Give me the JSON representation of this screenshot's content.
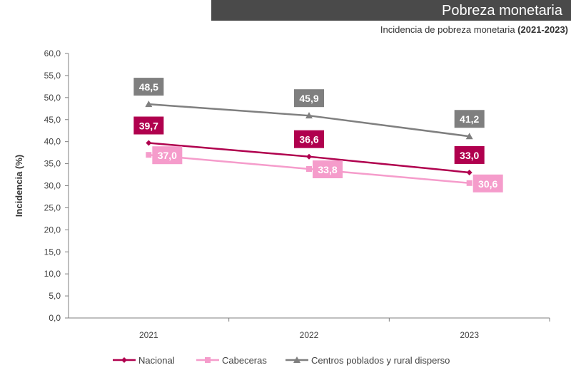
{
  "header": {
    "title": "Pobreza monetaria",
    "subtitle_text": "Incidencia de pobreza monetaria",
    "subtitle_period": "(2021-2023)"
  },
  "chart_data": {
    "type": "line",
    "x": [
      "2021",
      "2022",
      "2023"
    ],
    "ylabel": "Incidencia (%)",
    "ylim": [
      0,
      60
    ],
    "yticks": [
      "0,0",
      "5,0",
      "10,0",
      "15,0",
      "20,0",
      "25,0",
      "30,0",
      "35,0",
      "40,0",
      "45,0",
      "50,0",
      "55,0",
      "60,0"
    ],
    "grid": false,
    "legend_position": "bottom",
    "series": [
      {
        "name": "Nacional",
        "values": [
          39.7,
          36.6,
          33.0
        ],
        "labels": [
          "39,7",
          "36,6",
          "33,0"
        ],
        "color": "#b0004e",
        "marker": "diamond",
        "label_position": "above"
      },
      {
        "name": "Cabeceras",
        "values": [
          37.0,
          33.8,
          30.6
        ],
        "labels": [
          "37,0",
          "33,8",
          "30,6"
        ],
        "color": "#f59ccb",
        "marker": "square",
        "label_position": "right"
      },
      {
        "name": "Centros poblados y rural disperso",
        "values": [
          48.5,
          45.9,
          41.2
        ],
        "labels": [
          "48,5",
          "45,9",
          "41,2"
        ],
        "color": "#7f7f7f",
        "marker": "triangle",
        "label_position": "above"
      }
    ]
  }
}
